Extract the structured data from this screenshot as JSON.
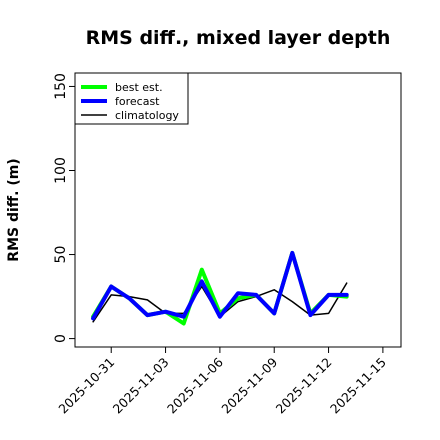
{
  "chart_data": {
    "type": "line",
    "title": "RMS diff., mixed layer depth",
    "xlabel": "",
    "ylabel": "RMS diff. (m)",
    "ylim": [
      -5,
      158
    ],
    "yticks": [
      0,
      50,
      100,
      150
    ],
    "xlim": [
      "2025-10-29",
      "2025-11-16"
    ],
    "xticks": [
      "2025-10-31",
      "2025-11-03",
      "2025-11-06",
      "2025-11-09",
      "2025-11-12",
      "2025-11-15"
    ],
    "highlight_tick": "2025-11-06",
    "highlight_color": "#2e8b2e",
    "x": [
      "2025-10-30",
      "2025-10-31",
      "2025-11-01",
      "2025-11-02",
      "2025-11-03",
      "2025-11-04",
      "2025-11-05",
      "2025-11-06",
      "2025-11-07",
      "2025-11-08",
      "2025-11-09",
      "2025-11-10",
      "2025-11-11",
      "2025-11-12",
      "2025-11-13"
    ],
    "series": [
      {
        "name": "best est.",
        "color": "#00ff00",
        "values": [
          13,
          31,
          24,
          14,
          16,
          9,
          41,
          15,
          24,
          26,
          15,
          51,
          15,
          26,
          25
        ]
      },
      {
        "name": "forecast",
        "color": "#0000ff",
        "values": [
          12,
          31,
          24,
          14,
          16,
          13,
          34,
          13,
          27,
          26,
          15,
          51,
          14,
          26,
          26
        ]
      },
      {
        "name": "climatology",
        "color": "#000000",
        "values": [
          10,
          26,
          25,
          23,
          15,
          15,
          31,
          13,
          22,
          25,
          29,
          22,
          14,
          15,
          33
        ]
      }
    ],
    "grid": false,
    "legend_position": "top-left"
  }
}
